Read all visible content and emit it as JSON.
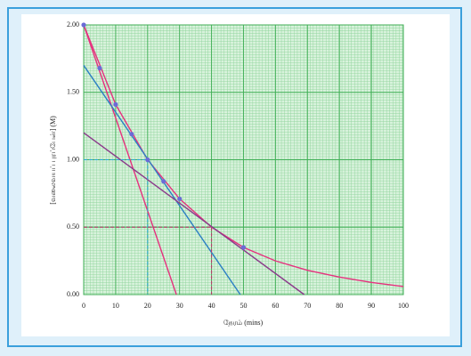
{
  "chart_data": {
    "type": "line",
    "x_label": "நேரம் (mins)",
    "y_label": "[வலைவயப் புரப்பேன்] (M)",
    "xlim": [
      0,
      100
    ],
    "ylim": [
      0,
      2
    ],
    "xticks": [
      0,
      10,
      20,
      30,
      40,
      50,
      60,
      70,
      80,
      90,
      100
    ],
    "yticks": [
      {
        "value": 0,
        "label": "0.00"
      },
      {
        "value": 0.5,
        "label": "0.50"
      },
      {
        "value": 1,
        "label": "1.00"
      },
      {
        "value": 1.5,
        "label": "1.50"
      },
      {
        "value": 2,
        "label": "2.00"
      }
    ],
    "grid": true,
    "series": [
      {
        "color": "#e6307e",
        "x": [
          0,
          10,
          20,
          30,
          40,
          50,
          60,
          70,
          80,
          90,
          100
        ],
        "values": [
          2.0,
          1.41,
          1.0,
          0.71,
          0.5,
          0.35,
          0.25,
          0.18,
          0.13,
          0.09,
          0.06
        ]
      },
      {
        "color": "#e6307e",
        "x": [
          0,
          29
        ],
        "values": [
          2.0,
          0
        ]
      },
      {
        "color": "#2b7fc4",
        "x": [
          0,
          49
        ],
        "values": [
          1.7,
          0
        ]
      },
      {
        "color": "#8b3a8b",
        "x": [
          0,
          69
        ],
        "values": [
          1.2,
          0
        ]
      },
      {
        "color": "#2aa6d6",
        "dashed": true,
        "x": [
          0,
          20,
          20
        ],
        "values": [
          1.0,
          1.0,
          0
        ]
      },
      {
        "color": "#c0306a",
        "dashed": true,
        "x": [
          0,
          40,
          40
        ],
        "values": [
          0.5,
          0.5,
          0
        ]
      },
      {
        "color": "#6b6bd6",
        "markers": true,
        "x": [
          0,
          5,
          10,
          15,
          20,
          25,
          30,
          50
        ],
        "values": [
          2.0,
          1.68,
          1.41,
          1.19,
          1.0,
          0.84,
          0.71,
          0.35
        ]
      }
    ]
  }
}
